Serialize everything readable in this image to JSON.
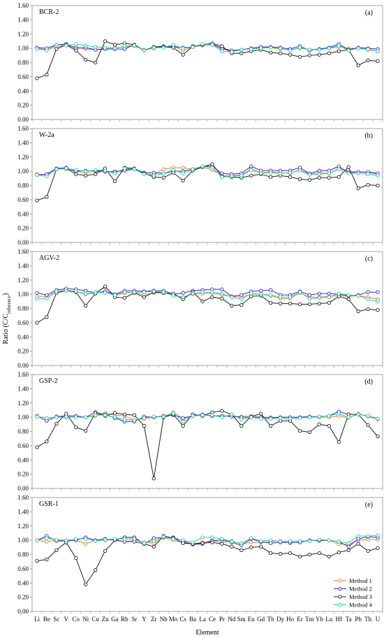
{
  "chart_data": {
    "type": "line",
    "ylabel": "Ratio (C/C",
    "ylabel_sub": "reference",
    "ylabel_close": ")",
    "xlabel": "Element",
    "ylim": [
      0,
      1.6
    ],
    "yticks": [
      "0.00",
      "0.20",
      "0.40",
      "0.60",
      "0.80",
      "1.00",
      "1.20",
      "1.40",
      "1.60"
    ],
    "categories": [
      "Li",
      "Be",
      "Sc",
      "V",
      "Co",
      "Ni",
      "Cu",
      "Zn",
      "Ga",
      "Rb",
      "Sr",
      "Y",
      "Zr",
      "Nb",
      "Mo",
      "Cs",
      "Ba",
      "La",
      "Ce",
      "Pr",
      "Nd",
      "Sm",
      "Eu",
      "Gd",
      "Tb",
      "Dy",
      "Ho",
      "Er",
      "Tm",
      "Yb",
      "Lu",
      "Hf",
      "Ta",
      "Pb",
      "Th",
      "U"
    ],
    "legend": [
      {
        "name": "Method 1",
        "color": "#ED7D31"
      },
      {
        "name": "Method 2",
        "color": "#3F1FD6"
      },
      {
        "name": "Method 3",
        "color": "#1F1F1F"
      },
      {
        "name": "Method 4",
        "color": "#1ED1A5"
      }
    ],
    "panels": [
      {
        "name": "BCR-2",
        "tag": "(a)",
        "series": [
          {
            "name": "Method 1",
            "values": [
              1.0,
              0.98,
              1.02,
              1.04,
              1.02,
              0.99,
              0.98,
              1.0,
              1.01,
              1.02,
              1.03,
              0.98,
              1.0,
              1.02,
              1.03,
              0.97,
              1.02,
              1.04,
              1.05,
              0.99,
              0.96,
              0.98,
              1.0,
              1.01,
              1.01,
              0.99,
              0.98,
              1.0,
              0.98,
              0.99,
              1.0,
              1.02,
              1.0,
              1.0,
              0.98,
              0.96
            ]
          },
          {
            "name": "Method 2",
            "values": [
              1.01,
              1.0,
              1.05,
              1.06,
              1.0,
              1.01,
              0.98,
              0.99,
              0.99,
              0.99,
              1.05,
              0.97,
              1.02,
              1.03,
              1.02,
              1.01,
              1.02,
              1.05,
              1.06,
              1.0,
              0.97,
              0.98,
              1.0,
              1.02,
              1.02,
              1.01,
              0.99,
              1.03,
              0.97,
              0.99,
              1.01,
              1.06,
              0.98,
              1.01,
              1.0,
              0.99
            ]
          },
          {
            "name": "Method 3",
            "values": [
              0.58,
              0.63,
              0.99,
              1.05,
              0.97,
              0.84,
              0.8,
              1.1,
              1.05,
              1.07,
              1.05,
              0.97,
              1.02,
              1.02,
              1.01,
              0.91,
              1.03,
              1.05,
              1.07,
              1.03,
              0.93,
              0.93,
              0.96,
              0.98,
              0.94,
              0.93,
              0.91,
              0.88,
              0.9,
              0.91,
              0.93,
              0.96,
              0.98,
              0.76,
              0.83,
              0.82
            ]
          },
          {
            "name": "Method 4",
            "values": [
              0.99,
              0.97,
              1.05,
              1.04,
              1.06,
              1.04,
              1.02,
              1.01,
              1.0,
              1.03,
              1.04,
              0.97,
              1.01,
              1.01,
              1.05,
              1.0,
              1.02,
              1.06,
              1.05,
              0.96,
              0.95,
              0.98,
              0.99,
              1.0,
              1.01,
              1.0,
              0.97,
              1.01,
              0.98,
              0.98,
              1.0,
              1.04,
              0.97,
              1.0,
              0.99,
              0.96
            ]
          }
        ]
      },
      {
        "name": "W-2a",
        "tag": "(b)",
        "series": [
          {
            "name": "Method 1",
            "values": [
              0.96,
              0.95,
              1.04,
              1.03,
              1.0,
              0.98,
              1.0,
              0.99,
              1.0,
              1.02,
              1.04,
              0.97,
              0.95,
              1.03,
              1.05,
              1.05,
              1.03,
              1.06,
              1.02,
              0.94,
              0.94,
              0.95,
              1.03,
              0.98,
              0.99,
              0.98,
              0.97,
              1.02,
              0.96,
              0.98,
              0.97,
              1.04,
              1.0,
              0.99,
              0.98,
              0.96
            ]
          },
          {
            "name": "Method 2",
            "values": [
              0.95,
              0.96,
              1.04,
              1.05,
              1.0,
              1.01,
              1.01,
              1.0,
              0.99,
              1.01,
              1.03,
              0.98,
              0.98,
              0.97,
              1.0,
              1.0,
              1.03,
              1.07,
              1.07,
              0.97,
              0.96,
              0.97,
              1.07,
              1.01,
              1.01,
              1.01,
              1.01,
              1.05,
              0.97,
              1.01,
              1.01,
              1.07,
              0.98,
              0.99,
              0.99,
              0.97
            ]
          },
          {
            "name": "Method 3",
            "values": [
              0.59,
              0.64,
              1.03,
              1.04,
              0.96,
              0.94,
              0.96,
              1.04,
              0.86,
              1.05,
              1.04,
              0.97,
              0.92,
              0.91,
              0.98,
              0.87,
              1.01,
              1.06,
              1.1,
              0.93,
              0.92,
              0.91,
              0.94,
              0.96,
              0.92,
              0.94,
              0.92,
              0.89,
              0.88,
              0.91,
              0.91,
              0.92,
              1.06,
              0.76,
              0.81,
              0.8
            ]
          },
          {
            "name": "Method 4",
            "values": [
              0.95,
              0.93,
              1.03,
              1.04,
              1.02,
              1.0,
              1.02,
              1.01,
              0.97,
              1.04,
              1.03,
              0.96,
              0.94,
              0.97,
              1.02,
              0.97,
              1.03,
              1.07,
              1.05,
              0.92,
              0.93,
              0.94,
              1.02,
              0.97,
              0.98,
              0.97,
              0.98,
              1.01,
              0.95,
              0.96,
              0.97,
              1.03,
              0.97,
              0.97,
              0.96,
              0.94
            ]
          }
        ]
      },
      {
        "name": "AGV-2",
        "tag": "(c)",
        "series": [
          {
            "name": "Method 1",
            "values": [
              0.97,
              0.97,
              1.04,
              1.06,
              1.04,
              1.0,
              1.02,
              1.1,
              0.98,
              1.02,
              1.03,
              0.99,
              1.02,
              1.02,
              0.99,
              0.96,
              1.0,
              1.01,
              1.02,
              0.99,
              0.97,
              0.96,
              1.0,
              1.0,
              0.98,
              0.94,
              0.94,
              1.02,
              0.96,
              0.96,
              0.97,
              0.98,
              0.97,
              0.98,
              0.96,
              0.93
            ]
          },
          {
            "name": "Method 2",
            "values": [
              1.02,
              0.99,
              1.06,
              1.08,
              1.07,
              1.05,
              1.02,
              1.04,
              1.0,
              1.05,
              1.05,
              1.04,
              1.05,
              1.05,
              1.0,
              1.02,
              1.05,
              1.06,
              1.07,
              1.07,
              0.97,
              0.99,
              1.04,
              1.05,
              1.06,
              0.99,
              0.99,
              1.04,
              0.99,
              1.01,
              1.01,
              1.0,
              0.98,
              0.99,
              1.03,
              1.03
            ]
          },
          {
            "name": "Method 3",
            "values": [
              0.6,
              0.68,
              1.02,
              1.05,
              1.03,
              0.84,
              1.01,
              1.11,
              0.96,
              0.95,
              1.02,
              0.96,
              1.03,
              1.02,
              1.01,
              0.93,
              1.03,
              0.9,
              0.96,
              0.94,
              0.84,
              0.85,
              0.97,
              0.98,
              0.88,
              0.87,
              0.87,
              0.86,
              0.86,
              0.87,
              0.88,
              0.97,
              0.93,
              0.76,
              0.79,
              0.78
            ]
          },
          {
            "name": "Method 4",
            "values": [
              0.94,
              0.94,
              1.04,
              1.05,
              1.04,
              1.01,
              1.03,
              1.02,
              0.99,
              1.03,
              1.03,
              1.03,
              1.04,
              1.03,
              0.98,
              0.96,
              1.01,
              1.03,
              1.03,
              1.01,
              0.96,
              0.93,
              1.01,
              1.0,
              0.99,
              0.96,
              0.96,
              1.03,
              0.94,
              0.95,
              0.96,
              1.01,
              0.99,
              0.98,
              0.93,
              0.9
            ]
          }
        ]
      },
      {
        "name": "GSP-2",
        "tag": "(d)",
        "series": [
          {
            "name": "Method 1",
            "values": [
              1.01,
              0.99,
              1.0,
              1.0,
              1.01,
              1.0,
              1.02,
              1.06,
              1.03,
              1.02,
              0.96,
              0.98,
              1.0,
              1.01,
              1.07,
              0.98,
              1.02,
              1.03,
              1.02,
              1.02,
              1.02,
              1.01,
              1.02,
              1.0,
              1.0,
              1.0,
              1.0,
              1.0,
              1.0,
              1.0,
              1.0,
              1.02,
              0.99,
              1.05,
              1.01,
              0.97
            ]
          },
          {
            "name": "Method 2",
            "values": [
              1.02,
              0.95,
              1.01,
              1.02,
              1.02,
              1.0,
              1.07,
              1.04,
              0.99,
              0.94,
              0.94,
              1.01,
              1.0,
              1.02,
              1.03,
              0.99,
              1.02,
              1.04,
              1.02,
              1.02,
              1.01,
              1.0,
              1.0,
              1.0,
              0.99,
              1.0,
              1.0,
              1.0,
              1.01,
              1.01,
              1.02,
              1.08,
              1.04,
              1.04,
              1.02,
              0.98
            ]
          },
          {
            "name": "Method 3",
            "values": [
              0.58,
              0.66,
              0.91,
              1.05,
              0.86,
              0.81,
              1.06,
              1.02,
              1.06,
              1.04,
              1.03,
              0.88,
              0.14,
              1.0,
              1.04,
              0.88,
              1.04,
              1.02,
              1.07,
              1.09,
              1.04,
              0.88,
              1.01,
              1.05,
              0.88,
              0.95,
              0.95,
              0.81,
              0.79,
              0.9,
              0.88,
              0.65,
              1.04,
              1.04,
              0.89,
              0.73
            ]
          },
          {
            "name": "Method 4",
            "values": [
              1.01,
              0.99,
              1.0,
              1.01,
              1.0,
              1.0,
              1.03,
              1.03,
              1.0,
              0.97,
              0.96,
              0.99,
              1.01,
              1.01,
              1.06,
              0.94,
              1.02,
              1.03,
              1.03,
              1.0,
              1.04,
              0.97,
              1.0,
              0.98,
              0.98,
              0.99,
              0.98,
              0.99,
              1.0,
              1.01,
              1.02,
              1.05,
              1.0,
              1.04,
              1.02,
              0.98
            ]
          }
        ]
      },
      {
        "name": "GSR-1",
        "tag": "(e)",
        "series": [
          {
            "name": "Method 1",
            "values": [
              1.0,
              0.98,
              1.0,
              0.99,
              1.0,
              0.95,
              1.0,
              1.0,
              1.01,
              0.98,
              1.0,
              0.97,
              0.96,
              1.04,
              1.0,
              0.97,
              0.95,
              0.97,
              1.0,
              0.97,
              0.99,
              0.95,
              0.97,
              0.97,
              0.98,
              0.99,
              0.96,
              0.98,
              1.0,
              0.99,
              1.0,
              0.95,
              0.94,
              1.0,
              1.01,
              1.01
            ]
          },
          {
            "name": "Method 2",
            "values": [
              1.0,
              1.06,
              0.99,
              0.99,
              1.0,
              1.04,
              1.0,
              1.02,
              1.0,
              0.98,
              0.98,
              0.95,
              1.03,
              1.04,
              1.04,
              0.99,
              0.94,
              0.95,
              0.99,
              1.01,
              0.97,
              0.93,
              1.02,
              0.98,
              0.96,
              0.97,
              0.97,
              0.97,
              1.0,
              1.0,
              1.0,
              0.98,
              0.91,
              1.02,
              1.05,
              1.04
            ]
          },
          {
            "name": "Method 3",
            "values": [
              0.71,
              0.73,
              0.86,
              0.97,
              0.75,
              0.38,
              0.58,
              0.85,
              1.0,
              1.04,
              1.04,
              0.95,
              0.91,
              1.06,
              1.03,
              0.96,
              0.95,
              0.96,
              0.97,
              0.95,
              0.91,
              0.86,
              0.9,
              0.91,
              0.82,
              0.81,
              0.82,
              0.77,
              0.8,
              0.82,
              0.77,
              0.83,
              0.86,
              0.95,
              0.85,
              0.89
            ]
          },
          {
            "name": "Method 4",
            "values": [
              1.0,
              1.03,
              1.01,
              1.0,
              1.02,
              1.02,
              0.99,
              1.01,
              1.02,
              1.02,
              1.02,
              0.96,
              0.99,
              1.05,
              1.02,
              1.0,
              0.97,
              1.04,
              1.04,
              1.02,
              0.98,
              0.96,
              1.03,
              0.99,
              1.0,
              0.98,
              0.99,
              0.99,
              0.99,
              1.01,
              1.0,
              0.98,
              0.96,
              1.06,
              1.06,
              1.07
            ]
          }
        ]
      }
    ]
  }
}
